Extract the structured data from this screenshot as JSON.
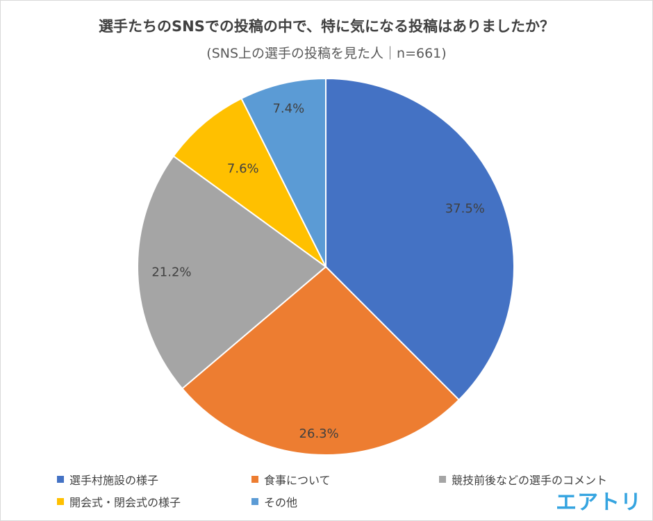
{
  "chart_data": {
    "type": "pie",
    "title": "選手たちのSNSでの投稿の中で、特に気になる投稿はありましたか？",
    "subtitle": "(SNS上の選手の投稿を見た人｜n=661)",
    "categories": [
      "選手村施設の様子",
      "食事について",
      "競技前後などの選手のコメント",
      "開会式・閉会式の様子",
      "その他"
    ],
    "values": [
      37.5,
      26.3,
      21.2,
      7.6,
      7.4
    ],
    "labels": [
      "37.5%",
      "26.3%",
      "21.2%",
      "7.6%",
      "7.4%"
    ],
    "colors": [
      "#4472c4",
      "#ed7d31",
      "#a5a5a5",
      "#ffc000",
      "#5b9bd5"
    ],
    "legend_position": "bottom"
  },
  "brand": {
    "text": "エアトリ",
    "color": "#35a4e0"
  }
}
